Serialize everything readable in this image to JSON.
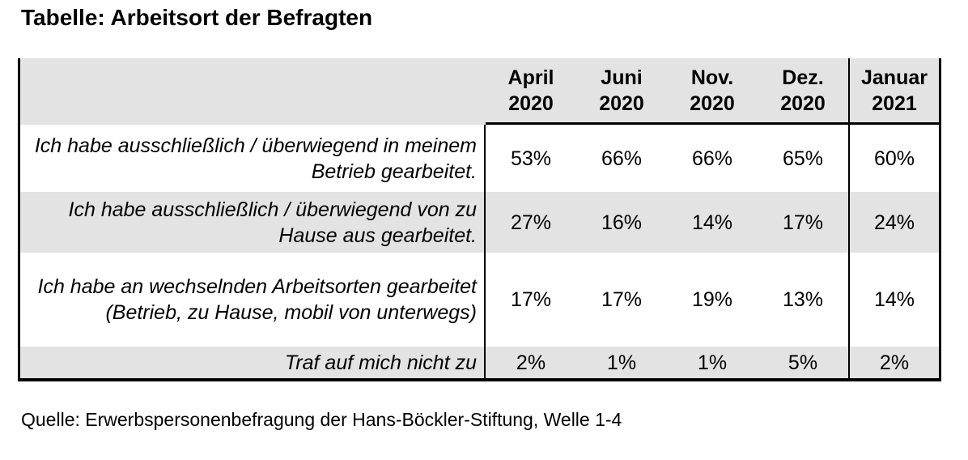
{
  "title": "Tabelle: Arbeitsort der Befragten",
  "source": "Quelle: Erwerbspersonenbefragung der Hans-Böckler-Stiftung, Welle 1-4",
  "colors": {
    "stripe_bg": "#e3e3e3",
    "border": "#000000",
    "text": "#000000",
    "page_bg": "#ffffff"
  },
  "table": {
    "header": {
      "corner": "",
      "cols": [
        {
          "line1": "April",
          "line2": "2020"
        },
        {
          "line1": "Juni",
          "line2": "2020"
        },
        {
          "line1": "Nov.",
          "line2": "2020"
        },
        {
          "line1": "Dez.",
          "line2": "2020"
        },
        {
          "line1": "Januar",
          "line2": "2021"
        }
      ]
    },
    "rows": [
      {
        "label": "Ich habe ausschließlich / überwiegend in meinem Betrieb gearbeitet.",
        "cells": [
          "53%",
          "66%",
          "66%",
          "65%",
          "60%"
        ]
      },
      {
        "label": "Ich habe ausschließlich / überwiegend von zu Hause aus gearbeitet.",
        "cells": [
          "27%",
          "16%",
          "14%",
          "17%",
          "24%"
        ]
      },
      {
        "label": "Ich habe an wechselnden Arbeitsorten gearbeitet (Betrieb, zu Hause, mobil von unterwegs)",
        "cells": [
          "17%",
          "17%",
          "19%",
          "13%",
          "14%"
        ]
      },
      {
        "label": "Traf auf mich nicht zu",
        "cells": [
          "2%",
          "1%",
          "1%",
          "5%",
          "2%"
        ]
      }
    ]
  },
  "chart_data": {
    "type": "table",
    "title": "Tabelle: Arbeitsort der Befragten",
    "columns": [
      "April 2020",
      "Juni 2020",
      "Nov. 2020",
      "Dez. 2020",
      "Januar 2021"
    ],
    "rows": [
      {
        "label": "Ich habe ausschließlich / überwiegend in meinem Betrieb gearbeitet.",
        "values_pct": [
          53,
          66,
          66,
          65,
          60
        ]
      },
      {
        "label": "Ich habe ausschließlich / überwiegend von zu Hause aus gearbeitet.",
        "values_pct": [
          27,
          16,
          14,
          17,
          24
        ]
      },
      {
        "label": "Ich habe an wechselnden Arbeitsorten gearbeitet (Betrieb, zu Hause, mobil von unterwegs)",
        "values_pct": [
          17,
          17,
          19,
          13,
          14
        ]
      },
      {
        "label": "Traf auf mich nicht zu",
        "values_pct": [
          2,
          1,
          1,
          5,
          2
        ]
      }
    ],
    "units": "%",
    "source": "Quelle: Erwerbspersonenbefragung der Hans-Böckler-Stiftung, Welle 1-4"
  }
}
